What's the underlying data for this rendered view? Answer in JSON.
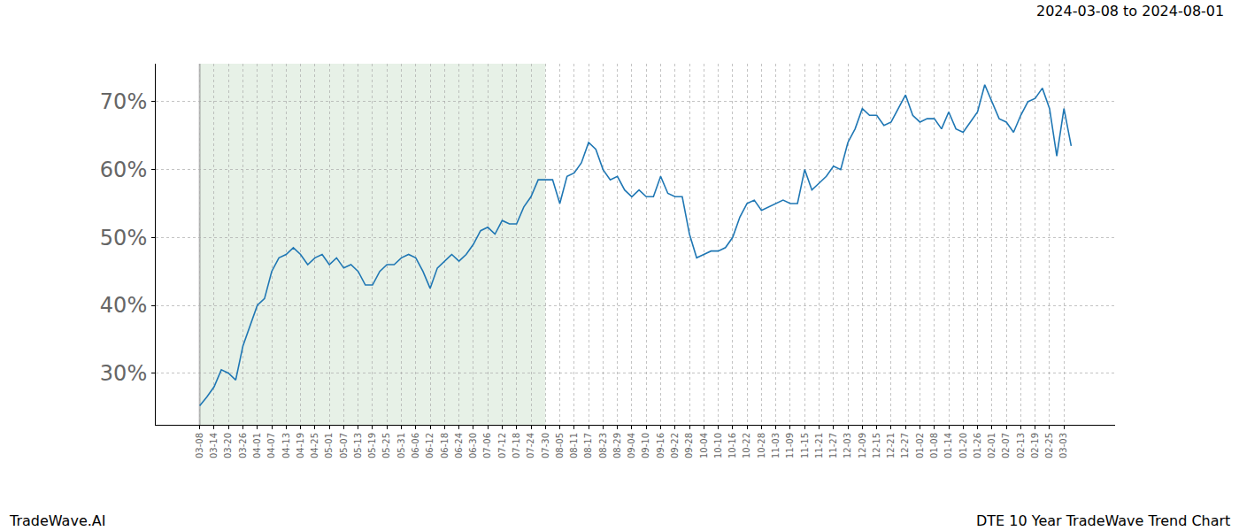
{
  "chart_data": {
    "type": "line",
    "title": "DTE 10 Year TradeWave Trend Chart",
    "subtitle": "2024-03-08 to 2024-08-01",
    "annotations": [
      "TradeWave.AI"
    ],
    "categories": [
      "03-08",
      null,
      "03-14",
      null,
      "03-20",
      null,
      "03-26",
      null,
      "04-01",
      null,
      "04-07",
      null,
      "04-13",
      null,
      "04-19",
      null,
      "04-25",
      null,
      "05-01",
      null,
      "05-07",
      null,
      "05-13",
      null,
      "05-19",
      null,
      "05-25",
      null,
      "05-31",
      null,
      "06-06",
      null,
      "06-12",
      null,
      "06-18",
      null,
      "06-24",
      null,
      "06-30",
      null,
      "07-06",
      null,
      "07-12",
      null,
      "07-18",
      null,
      "07-24",
      null,
      "07-30",
      null,
      "08-05",
      null,
      "08-11",
      null,
      "08-17",
      null,
      "08-23",
      null,
      "08-29",
      null,
      "09-04",
      null,
      "09-10",
      null,
      "09-16",
      null,
      "09-22",
      null,
      "09-28",
      null,
      "10-04",
      null,
      "10-10",
      null,
      "10-16",
      null,
      "10-22",
      null,
      "10-28",
      null,
      "11-03",
      null,
      "11-09",
      null,
      "11-15",
      null,
      "11-21",
      null,
      "11-27",
      null,
      "12-03",
      null,
      "12-09",
      null,
      "12-15",
      null,
      "12-21",
      null,
      "12-27",
      null,
      "01-02",
      null,
      "01-08",
      null,
      "01-14",
      null,
      "01-20",
      null,
      "01-26",
      null,
      "02-01",
      null,
      "02-07",
      null,
      "02-13",
      null,
      "02-19",
      null,
      "02-25",
      null,
      "03-03",
      null
    ],
    "values": [
      25.2,
      26.5,
      28,
      30.5,
      30,
      29,
      34,
      37,
      40,
      41,
      45,
      47,
      47.5,
      48.5,
      47.5,
      46,
      47,
      47.5,
      46,
      47,
      45.5,
      46,
      45,
      43,
      43,
      45,
      46,
      46,
      47,
      47.5,
      47,
      45,
      42.5,
      45.5,
      46.5,
      47.5,
      46.5,
      47.5,
      49,
      51,
      51.5,
      50.5,
      52.5,
      52,
      52,
      54.5,
      56,
      58.5,
      58.5,
      58.5,
      55,
      59,
      59.5,
      61,
      64,
      63,
      60,
      58.5,
      59,
      57,
      56,
      57,
      56,
      56,
      59,
      56.5,
      56,
      56,
      50.5,
      47,
      47.5,
      48,
      48,
      48.5,
      50,
      53,
      55,
      55.5,
      54,
      54.5,
      55,
      55.5,
      55,
      55,
      60,
      57,
      58,
      59,
      60.5,
      60,
      64,
      66,
      69,
      68,
      68,
      66.5,
      67,
      69,
      71,
      68,
      67,
      67.5,
      67.5,
      66,
      68.5,
      66,
      65.5,
      67,
      68.5,
      72.5,
      70,
      67.5,
      67,
      65.5,
      68,
      70,
      70.5,
      72,
      69,
      62,
      69,
      63.5
    ],
    "color": "#1f77b4",
    "highlight": {
      "from": "03-08",
      "to": "07-30"
    },
    "ylim": [
      22.4,
      75.6
    ],
    "yticks": [
      {
        "value": 30,
        "label": "30%"
      },
      {
        "value": 40,
        "label": "40%"
      },
      {
        "value": 50,
        "label": "50%"
      },
      {
        "value": 60,
        "label": "60%"
      },
      {
        "value": 70,
        "label": "70%"
      }
    ],
    "grid": true
  }
}
